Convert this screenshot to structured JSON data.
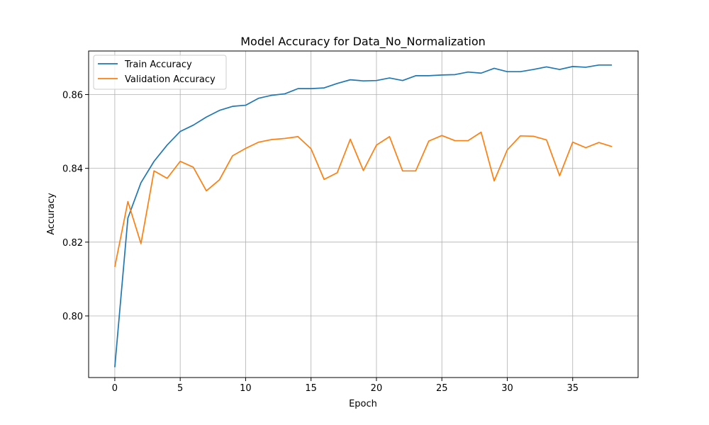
{
  "chart_data": {
    "type": "line",
    "title": "Model Accuracy for Data_No_Normalization",
    "xlabel": "Epoch",
    "ylabel": "Accuracy",
    "xlim": [
      -2,
      40
    ],
    "ylim": [
      0.7833,
      0.8718
    ],
    "xticks": [
      0,
      5,
      10,
      15,
      20,
      25,
      30,
      35
    ],
    "xtick_labels": [
      "0",
      "5",
      "10",
      "15",
      "20",
      "25",
      "30",
      "35"
    ],
    "yticks": [
      0.8,
      0.82,
      0.84,
      0.86
    ],
    "ytick_labels": [
      "0.80",
      "0.82",
      "0.84",
      "0.86"
    ],
    "grid": true,
    "legend_position": "top-left",
    "x": [
      0,
      1,
      2,
      3,
      4,
      5,
      6,
      7,
      8,
      9,
      10,
      11,
      12,
      13,
      14,
      15,
      16,
      17,
      18,
      19,
      20,
      21,
      22,
      23,
      24,
      25,
      26,
      27,
      28,
      29,
      30,
      31,
      32,
      33,
      34,
      35,
      36,
      37,
      38
    ],
    "series": [
      {
        "name": "Train Accuracy",
        "color": "#1f77b4",
        "values": [
          0.7861,
          0.8265,
          0.8361,
          0.8419,
          0.8463,
          0.85,
          0.8517,
          0.8539,
          0.8557,
          0.8568,
          0.8571,
          0.859,
          0.8598,
          0.8602,
          0.8616,
          0.8616,
          0.8618,
          0.863,
          0.864,
          0.8637,
          0.8638,
          0.8645,
          0.8638,
          0.8651,
          0.8651,
          0.8653,
          0.8654,
          0.8661,
          0.8658,
          0.8671,
          0.8662,
          0.8662,
          0.8668,
          0.8675,
          0.8668,
          0.8676,
          0.8674,
          0.868,
          0.868
        ]
      },
      {
        "name": "Validation Accuracy",
        "color": "#ff7f0e",
        "values": [
          0.8133,
          0.831,
          0.8196,
          0.8393,
          0.8373,
          0.8419,
          0.8403,
          0.8339,
          0.8369,
          0.8434,
          0.8454,
          0.8471,
          0.8478,
          0.8481,
          0.8486,
          0.8453,
          0.837,
          0.8388,
          0.8479,
          0.8394,
          0.8463,
          0.8486,
          0.8393,
          0.8393,
          0.8474,
          0.8489,
          0.8475,
          0.8475,
          0.8498,
          0.8366,
          0.845,
          0.8488,
          0.8487,
          0.8477,
          0.838,
          0.8471,
          0.8456,
          0.847,
          0.8459
        ]
      }
    ]
  }
}
